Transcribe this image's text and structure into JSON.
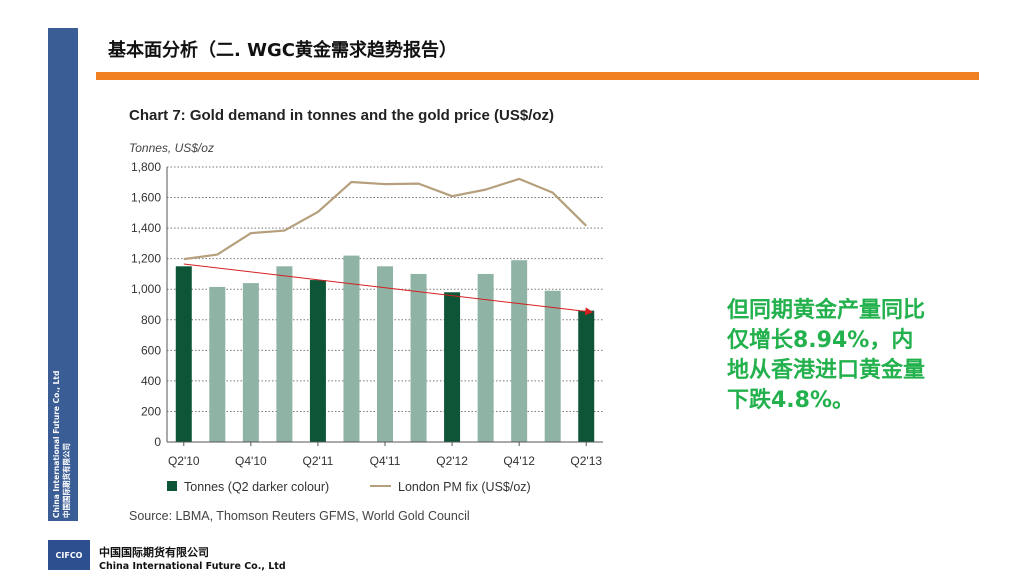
{
  "slide": {
    "title": "基本面分析（二. WGC黄金需求趋势报告）",
    "side_label_en": "China International Future Co., Ltd",
    "side_label_cn": "中国国际期货有限公司",
    "note": "但同期黄金产量同比仅增长8.94%，内地从香港进口黄金量下跌4.8%。",
    "logo_text": "CIFCO",
    "company_cn": "中国国际期货有限公司",
    "company_en": "China International Future Co., Ltd",
    "colors": {
      "side_band": "#3a5d95",
      "accent_bar": "#f07f21",
      "note_text": "#22b14c",
      "bar_dark": "#0d5536",
      "bar_light": "#8fb3a4",
      "price_line": "#b59f7c",
      "trend_arrow": "#d42020"
    }
  },
  "chart_data": {
    "type": "bar",
    "title": "Chart 7: Gold demand in tonnes and the gold price (US$/oz)",
    "ylabel": "Tonnes, US$/oz",
    "ylim": [
      0,
      1800
    ],
    "yticks": [
      "1,800",
      "1,600",
      "1,400",
      "1,200",
      "1,000",
      "800",
      "600",
      "400",
      "200",
      "0"
    ],
    "categories": [
      "Q2'10",
      "Q3'10",
      "Q4'10",
      "Q1'11",
      "Q2'11",
      "Q3'11",
      "Q4'11",
      "Q1'12",
      "Q2'12",
      "Q3'12",
      "Q4'12",
      "Q1'13",
      "Q2'13"
    ],
    "x_tick_labels": [
      "Q2'10",
      "Q4'10",
      "Q2'11",
      "Q4'11",
      "Q2'12",
      "Q4'12",
      "Q2'13"
    ],
    "series": [
      {
        "name": "Tonnes (Q2 darker colour)",
        "kind": "bar",
        "values": [
          1150,
          1015,
          1040,
          1150,
          1060,
          1220,
          1150,
          1100,
          980,
          1100,
          1190,
          990,
          860
        ],
        "dark": [
          true,
          false,
          false,
          false,
          true,
          false,
          false,
          false,
          true,
          false,
          false,
          false,
          true
        ]
      },
      {
        "name": "London PM fix (US$/oz)",
        "kind": "line",
        "values": [
          1197,
          1227,
          1367,
          1384,
          1506,
          1702,
          1688,
          1691,
          1609,
          1652,
          1722,
          1632,
          1415
        ]
      }
    ],
    "trend_arrow": {
      "from": [
        0,
        1165
      ],
      "to": [
        12,
        850
      ]
    },
    "grid": true,
    "legend": "bottom",
    "source": "Source: LBMA, Thomson Reuters GFMS, World Gold Council"
  }
}
